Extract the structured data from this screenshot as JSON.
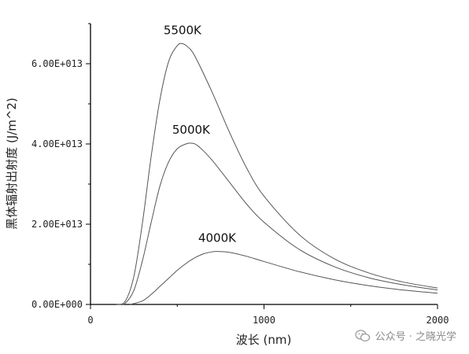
{
  "chart_data": {
    "type": "line",
    "xlabel": "波长 (nm)",
    "ylabel": "黑体辐射出射度 (J/m^2)",
    "xlim": [
      0,
      2000
    ],
    "ylim": [
      0,
      70000000000000.0
    ],
    "x_ticks": [
      0,
      1000,
      2000
    ],
    "x_tick_labels": [
      "0",
      "1000",
      "2000"
    ],
    "y_ticks": [
      0,
      20000000000000.0,
      40000000000000.0,
      60000000000000.0
    ],
    "y_tick_labels": [
      "0.00E+000",
      "2.00E+013",
      "4.00E+013",
      "6.00E+013"
    ],
    "grid": false,
    "series": [
      {
        "name": "5500K",
        "color": "#555555",
        "x": [
          150,
          200,
          250,
          300,
          350,
          400,
          450,
          500,
          530,
          560,
          600,
          700,
          800,
          900,
          1000,
          1200,
          1400,
          1600,
          1800,
          2000
        ],
        "y": [
          0.0,
          800000000000.0,
          7000000000000.0,
          20500000000000.0,
          37000000000000.0,
          51000000000000.0,
          60500000000000.0,
          64500000000000.0,
          65000000000000.0,
          64200000000000.0,
          62000000000000.0,
          53000000000000.0,
          43000000000000.0,
          34000000000000.0,
          27000000000000.0,
          17500000000000.0,
          11500000000000.0,
          7900000000000.0,
          5600000000000.0,
          4100000000000.0
        ]
      },
      {
        "name": "5000K",
        "color": "#555555",
        "x": [
          170,
          200,
          250,
          300,
          350,
          400,
          450,
          500,
          550,
          580,
          620,
          700,
          800,
          900,
          1000,
          1200,
          1400,
          1600,
          1800,
          2000
        ],
        "y": [
          0.0,
          300000000000.0,
          3500000000000.0,
          11000000000000.0,
          20500000000000.0,
          29500000000000.0,
          35500000000000.0,
          38800000000000.0,
          40000000000000.0,
          40200000000000.0,
          39500000000000.0,
          36000000000000.0,
          30500000000000.0,
          25000000000000.0,
          20500000000000.0,
          13800000000000.0,
          9500000000000.0,
          6700000000000.0,
          4900000000000.0,
          3600000000000.0
        ]
      },
      {
        "name": "4000K",
        "color": "#555555",
        "x": [
          230,
          300,
          350,
          400,
          450,
          500,
          550,
          600,
          650,
          700,
          730,
          800,
          900,
          1000,
          1200,
          1400,
          1600,
          1800,
          2000
        ],
        "y": [
          0.0,
          900000000000.0,
          2500000000000.0,
          4500000000000.0,
          6500000000000.0,
          8500000000000.0,
          10200000000000.0,
          11600000000000.0,
          12600000000000.0,
          13100000000000.0,
          13200000000000.0,
          13000000000000.0,
          12000000000000.0,
          10700000000000.0,
          8200000000000.0,
          6200000000000.0,
          4700000000000.0,
          3600000000000.0,
          2800000000000.0
        ]
      }
    ]
  },
  "watermark": {
    "icon": "wechat-icon",
    "text": "公众号 · 之晓光学"
  }
}
